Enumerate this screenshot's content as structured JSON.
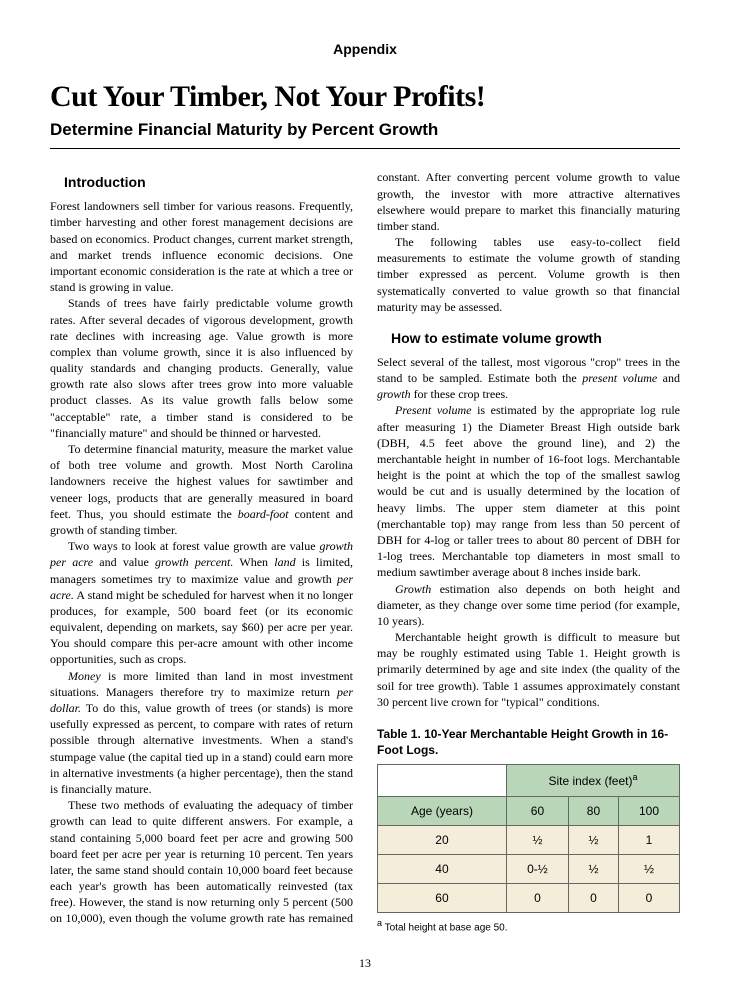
{
  "appendix": "Appendix",
  "title": "Cut Your Timber, Not Your Profits!",
  "subtitle": "Determine Financial Maturity by Percent Growth",
  "intro_heading": "Introduction",
  "p1": "Forest landowners sell timber for various reasons. Frequently, timber harvesting and other forest management decisions are based on economics. Product changes, current market strength, and market trends influence economic decisions. One important economic consideration is the rate at which a tree or stand is growing in value.",
  "p2": "Stands of trees have fairly predictable volume growth rates. After several decades of vigorous development, growth rate declines with increasing age. Value growth is more complex than volume growth, since it is also influenced by quality standards and changing products. Generally, value growth rate also slows after trees grow into more valuable product classes. As its value growth falls below some \"acceptable\" rate, a timber stand is considered to be \"financially mature\" and should be thinned or harvested.",
  "p3a": "To determine financial maturity, measure the market value of both tree volume and growth. Most North Carolina landowners receive the highest values for sawtimber and veneer logs, products that are generally measured in board feet. Thus, you should estimate the ",
  "p3b": " content and growth of standing timber.",
  "p4a": "Two ways to look at forest value growth are value ",
  "p4b": " and value ",
  "p4c": " When ",
  "p4d": " is limited, managers sometimes try to maximize value and growth ",
  "p4e": " A stand might be scheduled for harvest when it no longer produces, for example, 500 board feet (or its economic equivalent, depending on markets, say $60) per acre per year. You should compare this per-acre amount with other income opportunities, such as crops.",
  "p5a": " is more limited than land in most investment situations. Managers therefore try to maximize return ",
  "p5b": " To do this, value growth of trees (or stands) is more usefully expressed as percent, to compare with rates of return possible through alternative investments. When a stand's stumpage value (the capital tied up in a stand) could earn more in alternative investments (a higher percentage), then the stand is financially mature.",
  "p6": "These two methods of evaluating the adequacy of timber growth can lead to quite different answers. For example, a stand containing 5,000 board feet per acre and growing 500 board feet per acre per year is returning 10 percent. Ten years later, the same stand should contain 10,000 board feet because each year's growth has been automatically reinvested (tax free). However, the stand is now returning only 5 percent (500 on 10,000), even though the volume growth rate has remained constant. After converting percent volume growth to value growth, the investor with more attractive alternatives elsewhere would prepare to market this financially maturing timber stand.",
  "p7": "The following tables use easy-to-collect field measurements to estimate the volume growth of standing timber expressed as percent. Volume growth is then systematically converted to value growth so that financial maturity may be assessed.",
  "vol_heading": "How to estimate volume growth",
  "p8a": "Select several of the tallest, most vigorous \"crop\" trees in the stand to be sampled. Estimate both the ",
  "p8b": " and ",
  "p8c": " for these crop trees.",
  "p9a": " is estimated by the appropriate log rule after measuring 1) the Diameter Breast High outside bark (DBH, 4.5 feet above the ground line), and 2) the merchantable height in number of 16-foot logs. Merchantable height is the point at which the top of the smallest sawlog would be cut and is usually determined by the location of heavy limbs. The upper stem diameter at this point (merchantable top) may range from less than 50 percent of DBH for 4-log or taller trees to about 80 percent of DBH for 1-log trees. Merchantable top diameters in most small to medium sawtimber average about 8 inches inside bark.",
  "p10a": " estimation also depends on both height and diameter, as they change over some time period (for example, 10 years).",
  "p11": "Merchantable height growth is difficult to measure but may be roughly estimated using Table 1. Height growth is primarily determined by age and site index (the quality of the soil for tree growth). Table 1 assumes approximately constant 30 percent live crown for \"typical\" conditions.",
  "table1": {
    "caption": "Table 1. 10-Year Merchantable Height Growth in 16-Foot Logs.",
    "site_index_header": "Site index (feet)",
    "age_header": "Age (years)",
    "cols": [
      "60",
      "80",
      "100"
    ],
    "rows": [
      {
        "age": "20",
        "v": [
          "½",
          "½",
          "1"
        ]
      },
      {
        "age": "40",
        "v": [
          "0-½",
          "½",
          "½"
        ]
      },
      {
        "age": "60",
        "v": [
          "0",
          "0",
          "0"
        ]
      }
    ],
    "footnote": "Total height at base age 50.",
    "header_bg": "#b9d6b9",
    "cell_bg": "#f3edd9"
  },
  "italic": {
    "board_foot": "board-foot",
    "growth_per_acre": "growth per acre",
    "growth_percent": "growth percent.",
    "land": "land",
    "per_acre": "per acre.",
    "money": "Money",
    "per_dollar": "per dollar.",
    "present_volume": "present volume",
    "growth": "growth",
    "present_volume2": "Present volume",
    "growth2": "Growth"
  },
  "page_number": "13",
  "sup_a": "a"
}
